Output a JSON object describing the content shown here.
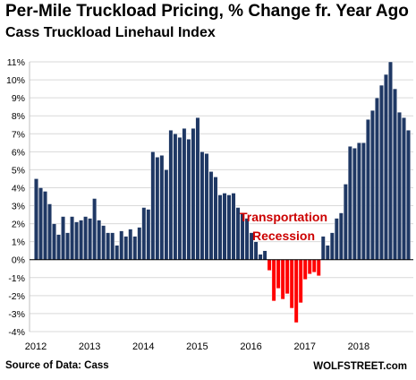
{
  "chart_data": {
    "type": "bar",
    "title": "Per-Mile Truckload Pricing, % Change fr. Year Ago",
    "subtitle": "Cass Truckload Linehaul Index",
    "source": "Source of Data: Cass",
    "brand": "WOLFSTREET.com",
    "annotation": [
      "Transportation",
      "Recession"
    ],
    "ylim": [
      -4,
      11
    ],
    "yticks": [
      -4,
      -3,
      -2,
      -1,
      0,
      1,
      2,
      3,
      4,
      5,
      6,
      7,
      8,
      9,
      10,
      11
    ],
    "ytick_labels": [
      "-4%",
      "-3%",
      "-2%",
      "-1%",
      "0%",
      "1%",
      "2%",
      "3%",
      "4%",
      "5%",
      "6%",
      "7%",
      "8%",
      "9%",
      "10%",
      "11%"
    ],
    "x_labels": [
      "2012",
      "2013",
      "2014",
      "2015",
      "2016",
      "2017",
      "2018"
    ],
    "start": "2012-01",
    "grid": true,
    "colors": {
      "positive": "#1f3864",
      "negative": "#ff0000",
      "annotation": "#cc0000"
    },
    "values": [
      4.5,
      4.0,
      3.8,
      3.1,
      2.0,
      1.4,
      2.4,
      1.5,
      2.4,
      2.1,
      2.2,
      2.4,
      2.3,
      3.4,
      2.2,
      1.9,
      1.5,
      1.5,
      0.8,
      1.6,
      1.3,
      1.7,
      1.3,
      1.8,
      2.9,
      2.8,
      6.0,
      5.7,
      5.8,
      5.0,
      7.2,
      7.0,
      6.8,
      7.3,
      6.7,
      7.3,
      7.9,
      6.0,
      5.9,
      4.9,
      4.6,
      3.6,
      3.7,
      3.6,
      3.7,
      2.9,
      2.6,
      2.3,
      1.5,
      1.0,
      0.3,
      0.5,
      -0.6,
      -2.3,
      -1.6,
      -2.2,
      -1.9,
      -2.7,
      -3.5,
      -2.4,
      -1.1,
      -0.8,
      -0.7,
      -0.9,
      1.3,
      0.8,
      1.5,
      2.3,
      2.6,
      4.2,
      6.3,
      6.2,
      6.5,
      6.5,
      7.8,
      8.3,
      9.0,
      9.7,
      10.3,
      11.0,
      9.5,
      8.2,
      7.9,
      7.2
    ]
  }
}
